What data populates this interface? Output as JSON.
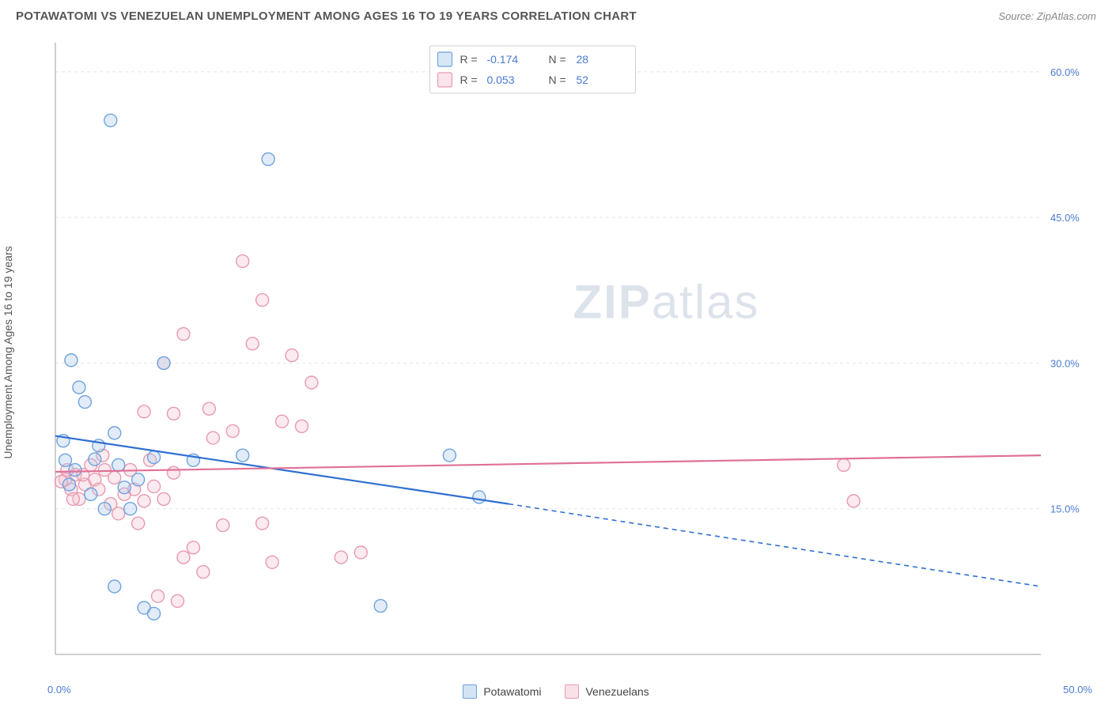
{
  "header": {
    "title": "POTAWATOMI VS VENEZUELAN UNEMPLOYMENT AMONG AGES 16 TO 19 YEARS CORRELATION CHART",
    "source": "Source: ZipAtlas.com"
  },
  "ylabel": "Unemployment Among Ages 16 to 19 years",
  "watermark": {
    "heavy": "ZIP",
    "light": "atlas"
  },
  "chart": {
    "type": "scatter",
    "xlim": [
      0,
      50
    ],
    "ylim": [
      0,
      63
    ],
    "x_ticks": [
      0,
      50
    ],
    "x_tick_labels": [
      "0.0%",
      "50.0%"
    ],
    "y_grid": [
      15,
      30,
      45,
      60
    ],
    "y_grid_labels": [
      "15.0%",
      "30.0%",
      "45.0%",
      "60.0%"
    ],
    "grid_color": "#e5e5e5",
    "axis_color": "#bfbfbf",
    "tick_label_color": "#4a7bd0",
    "background_color": "#ffffff"
  },
  "series": [
    {
      "name": "Potawatomi",
      "color_stroke": "#6fa3de",
      "color_fill": "#a9c9ec",
      "marker_radius": 8,
      "trend": {
        "solid_from": [
          0,
          22.5
        ],
        "solid_to": [
          23,
          15.5
        ],
        "dash_to": [
          50,
          7.0
        ],
        "color": "#2f6fd0"
      },
      "corr": {
        "R": "-0.174",
        "N": "28"
      },
      "points": [
        [
          2.8,
          55.0
        ],
        [
          10.8,
          51.0
        ],
        [
          0.8,
          30.3
        ],
        [
          1.2,
          27.5
        ],
        [
          1.5,
          26.0
        ],
        [
          5.5,
          30.0
        ],
        [
          0.5,
          20.0
        ],
        [
          1.0,
          19.0
        ],
        [
          2.0,
          20.1
        ],
        [
          3.0,
          22.8
        ],
        [
          3.2,
          19.5
        ],
        [
          3.5,
          17.2
        ],
        [
          5.0,
          20.3
        ],
        [
          7.0,
          20.0
        ],
        [
          9.5,
          20.5
        ],
        [
          20.0,
          20.5
        ],
        [
          21.5,
          16.2
        ],
        [
          0.7,
          17.5
        ],
        [
          1.8,
          16.5
        ],
        [
          2.5,
          15.0
        ],
        [
          3.0,
          7.0
        ],
        [
          4.5,
          4.8
        ],
        [
          5.0,
          4.2
        ],
        [
          3.8,
          15.0
        ],
        [
          16.5,
          5.0
        ],
        [
          2.2,
          21.5
        ],
        [
          4.2,
          18.0
        ],
        [
          0.4,
          22.0
        ]
      ]
    },
    {
      "name": "Venezuelans",
      "color_stroke": "#e89ab0",
      "color_fill": "#f4c4d2",
      "marker_radius": 8,
      "trend": {
        "solid_from": [
          0,
          18.8
        ],
        "solid_to": [
          50,
          20.5
        ],
        "dash_to": null,
        "color": "#e07096"
      },
      "corr": {
        "R": "0.053",
        "N": "52"
      },
      "points": [
        [
          9.5,
          40.5
        ],
        [
          10.5,
          36.5
        ],
        [
          6.5,
          33.0
        ],
        [
          5.5,
          30.0
        ],
        [
          4.5,
          25.0
        ],
        [
          6.0,
          24.8
        ],
        [
          7.8,
          25.3
        ],
        [
          10.0,
          32.0
        ],
        [
          12.0,
          30.8
        ],
        [
          11.5,
          24.0
        ],
        [
          13.0,
          28.0
        ],
        [
          1.0,
          18.5
        ],
        [
          1.5,
          17.5
        ],
        [
          2.0,
          18.0
        ],
        [
          2.5,
          19.0
        ],
        [
          3.0,
          18.2
        ],
        [
          3.5,
          16.5
        ],
        [
          4.0,
          17.0
        ],
        [
          4.5,
          15.8
        ],
        [
          5.0,
          17.3
        ],
        [
          5.5,
          16.0
        ],
        [
          6.0,
          18.7
        ],
        [
          6.5,
          10.0
        ],
        [
          7.0,
          11.0
        ],
        [
          7.5,
          8.5
        ],
        [
          8.0,
          22.3
        ],
        [
          8.5,
          13.3
        ],
        [
          9.0,
          23.0
        ],
        [
          10.5,
          13.5
        ],
        [
          11.0,
          9.5
        ],
        [
          12.5,
          23.5
        ],
        [
          14.5,
          10.0
        ],
        [
          15.5,
          10.5
        ],
        [
          0.5,
          18.0
        ],
        [
          0.8,
          17.0
        ],
        [
          1.2,
          16.0
        ],
        [
          1.8,
          19.5
        ],
        [
          2.2,
          17.0
        ],
        [
          40.0,
          19.5
        ],
        [
          40.5,
          15.8
        ],
        [
          3.2,
          14.5
        ],
        [
          4.2,
          13.5
        ],
        [
          2.8,
          15.5
        ],
        [
          0.3,
          17.8
        ],
        [
          0.6,
          19.0
        ],
        [
          1.4,
          18.5
        ],
        [
          5.2,
          6.0
        ],
        [
          6.2,
          5.5
        ],
        [
          3.8,
          19.0
        ],
        [
          4.8,
          20.0
        ],
        [
          0.9,
          16.0
        ],
        [
          2.4,
          20.5
        ]
      ]
    }
  ],
  "corr_legend": {
    "R_label": "R =",
    "N_label": "N ="
  },
  "footer_legend": [
    {
      "label": "Potawatomi",
      "stroke": "#6fa3de",
      "fill": "#a9c9ec"
    },
    {
      "label": "Venezuelans",
      "stroke": "#e89ab0",
      "fill": "#f4c4d2"
    }
  ]
}
